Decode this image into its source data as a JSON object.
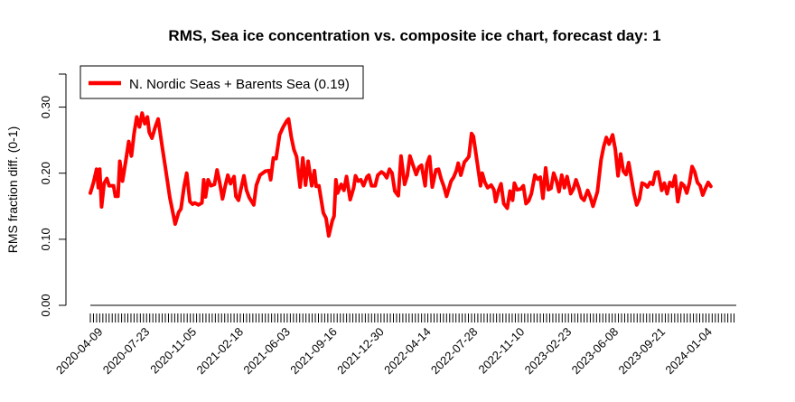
{
  "chart_data": {
    "type": "line",
    "title": "RMS, Sea ice concentration vs. composite ice chart, forecast day: 1",
    "ylabel": "RMS fraction diff. (0-1)",
    "xlabel": "",
    "ylim": [
      0,
      0.35
    ],
    "yticks": [
      "0.00",
      "0.10",
      "0.20",
      "0.30"
    ],
    "ytick_values": [
      0,
      0.1,
      0.2,
      0.3
    ],
    "xtick_labels": [
      "2020-04-09",
      "2020-07-23",
      "2020-11-05",
      "2021-02-18",
      "2021-06-03",
      "2021-09-16",
      "2021-12-30",
      "2022-04-14",
      "2022-07-28",
      "2022-11-10",
      "2023-02-23",
      "2023-06-08",
      "2023-09-21",
      "2024-01-04"
    ],
    "x_start": "2020-03-19",
    "x_end": "2024-03-05",
    "legend": {
      "position": "top-left",
      "entries": [
        "N. Nordic Seas + Barents Sea (0.19)"
      ]
    },
    "series_color": "#ff0000",
    "series": [
      {
        "name": "N. Nordic Seas + Barents Sea (0.19)",
        "points": [
          [
            "2020-03-19",
            0.17
          ],
          [
            "2020-03-26",
            0.186
          ],
          [
            "2020-04-02",
            0.206
          ],
          [
            "2020-04-06",
            0.178
          ],
          [
            "2020-04-09",
            0.206
          ],
          [
            "2020-04-13",
            0.149
          ],
          [
            "2020-04-19",
            0.185
          ],
          [
            "2020-04-25",
            0.192
          ],
          [
            "2020-04-30",
            0.181
          ],
          [
            "2020-05-10",
            0.181
          ],
          [
            "2020-05-14",
            0.165
          ],
          [
            "2020-05-20",
            0.165
          ],
          [
            "2020-05-24",
            0.218
          ],
          [
            "2020-05-30",
            0.188
          ],
          [
            "2020-06-07",
            0.221
          ],
          [
            "2020-06-13",
            0.248
          ],
          [
            "2020-06-19",
            0.226
          ],
          [
            "2020-06-25",
            0.26
          ],
          [
            "2020-07-01",
            0.285
          ],
          [
            "2020-07-07",
            0.27
          ],
          [
            "2020-07-13",
            0.291
          ],
          [
            "2020-07-19",
            0.275
          ],
          [
            "2020-07-25",
            0.285
          ],
          [
            "2020-07-29",
            0.262
          ],
          [
            "2020-08-04",
            0.253
          ],
          [
            "2020-08-12",
            0.271
          ],
          [
            "2020-08-18",
            0.282
          ],
          [
            "2020-08-26",
            0.244
          ],
          [
            "2020-09-03",
            0.209
          ],
          [
            "2020-09-13",
            0.163
          ],
          [
            "2020-09-25",
            0.123
          ],
          [
            "2020-10-03",
            0.141
          ],
          [
            "2020-10-08",
            0.146
          ],
          [
            "2020-10-15",
            0.18
          ],
          [
            "2020-10-21",
            0.2
          ],
          [
            "2020-10-28",
            0.157
          ],
          [
            "2020-11-03",
            0.153
          ],
          [
            "2020-11-08",
            0.155
          ],
          [
            "2020-11-16",
            0.152
          ],
          [
            "2020-11-24",
            0.155
          ],
          [
            "2020-11-28",
            0.19
          ],
          [
            "2020-12-02",
            0.164
          ],
          [
            "2020-12-08",
            0.19
          ],
          [
            "2020-12-14",
            0.181
          ],
          [
            "2020-12-22",
            0.183
          ],
          [
            "2020-12-28",
            0.205
          ],
          [
            "2021-01-03",
            0.185
          ],
          [
            "2021-01-09",
            0.161
          ],
          [
            "2021-01-15",
            0.18
          ],
          [
            "2021-01-21",
            0.197
          ],
          [
            "2021-01-27",
            0.184
          ],
          [
            "2021-02-04",
            0.195
          ],
          [
            "2021-02-08",
            0.165
          ],
          [
            "2021-02-14",
            0.159
          ],
          [
            "2021-02-20",
            0.178
          ],
          [
            "2021-02-26",
            0.196
          ],
          [
            "2021-03-04",
            0.174
          ],
          [
            "2021-03-10",
            0.163
          ],
          [
            "2021-03-20",
            0.152
          ],
          [
            "2021-03-26",
            0.182
          ],
          [
            "2021-04-03",
            0.197
          ],
          [
            "2021-04-15",
            0.203
          ],
          [
            "2021-04-23",
            0.204
          ],
          [
            "2021-04-27",
            0.19
          ],
          [
            "2021-05-03",
            0.223
          ],
          [
            "2021-05-09",
            0.222
          ],
          [
            "2021-05-17",
            0.258
          ],
          [
            "2021-05-25",
            0.27
          ],
          [
            "2021-06-02",
            0.279
          ],
          [
            "2021-06-06",
            0.282
          ],
          [
            "2021-06-12",
            0.255
          ],
          [
            "2021-06-18",
            0.236
          ],
          [
            "2021-06-24",
            0.225
          ],
          [
            "2021-07-02",
            0.179
          ],
          [
            "2021-07-08",
            0.223
          ],
          [
            "2021-07-14",
            0.182
          ],
          [
            "2021-07-20",
            0.218
          ],
          [
            "2021-07-28",
            0.181
          ],
          [
            "2021-08-03",
            0.204
          ],
          [
            "2021-08-07",
            0.18
          ],
          [
            "2021-08-13",
            0.181
          ],
          [
            "2021-08-23",
            0.14
          ],
          [
            "2021-08-29",
            0.132
          ],
          [
            "2021-09-04",
            0.105
          ],
          [
            "2021-09-12",
            0.128
          ],
          [
            "2021-09-16",
            0.135
          ],
          [
            "2021-09-20",
            0.19
          ],
          [
            "2021-09-24",
            0.17
          ],
          [
            "2021-10-02",
            0.183
          ],
          [
            "2021-10-08",
            0.174
          ],
          [
            "2021-10-14",
            0.195
          ],
          [
            "2021-10-22",
            0.16
          ],
          [
            "2021-10-30",
            0.178
          ],
          [
            "2021-11-03",
            0.196
          ],
          [
            "2021-11-09",
            0.188
          ],
          [
            "2021-11-15",
            0.19
          ],
          [
            "2021-11-21",
            0.181
          ],
          [
            "2021-11-29",
            0.195
          ],
          [
            "2021-12-03",
            0.197
          ],
          [
            "2021-12-09",
            0.181
          ],
          [
            "2021-12-17",
            0.181
          ],
          [
            "2021-12-23",
            0.197
          ],
          [
            "2021-12-31",
            0.202
          ],
          [
            "2022-01-06",
            0.199
          ],
          [
            "2022-01-12",
            0.193
          ],
          [
            "2022-01-18",
            0.206
          ],
          [
            "2022-01-24",
            0.2
          ],
          [
            "2022-01-30",
            0.173
          ],
          [
            "2022-02-07",
            0.166
          ],
          [
            "2022-02-13",
            0.226
          ],
          [
            "2022-02-21",
            0.183
          ],
          [
            "2022-02-27",
            0.196
          ],
          [
            "2022-03-05",
            0.226
          ],
          [
            "2022-03-13",
            0.21
          ],
          [
            "2022-03-19",
            0.198
          ],
          [
            "2022-03-25",
            0.209
          ],
          [
            "2022-03-31",
            0.212
          ],
          [
            "2022-04-08",
            0.181
          ],
          [
            "2022-04-12",
            0.214
          ],
          [
            "2022-04-18",
            0.225
          ],
          [
            "2022-04-24",
            0.179
          ],
          [
            "2022-05-02",
            0.205
          ],
          [
            "2022-05-08",
            0.206
          ],
          [
            "2022-05-14",
            0.191
          ],
          [
            "2022-05-20",
            0.18
          ],
          [
            "2022-05-26",
            0.165
          ],
          [
            "2022-06-05",
            0.188
          ],
          [
            "2022-06-11",
            0.194
          ],
          [
            "2022-06-17",
            0.204
          ],
          [
            "2022-06-21",
            0.215
          ],
          [
            "2022-06-27",
            0.197
          ],
          [
            "2022-07-05",
            0.217
          ],
          [
            "2022-07-09",
            0.22
          ],
          [
            "2022-07-15",
            0.225
          ],
          [
            "2022-07-21",
            0.26
          ],
          [
            "2022-07-25",
            0.256
          ],
          [
            "2022-08-04",
            0.21
          ],
          [
            "2022-08-10",
            0.181
          ],
          [
            "2022-08-14",
            0.2
          ],
          [
            "2022-08-20",
            0.186
          ],
          [
            "2022-08-26",
            0.178
          ],
          [
            "2022-09-03",
            0.182
          ],
          [
            "2022-09-09",
            0.175
          ],
          [
            "2022-09-13",
            0.157
          ],
          [
            "2022-09-19",
            0.173
          ],
          [
            "2022-09-25",
            0.184
          ],
          [
            "2022-10-01",
            0.154
          ],
          [
            "2022-10-09",
            0.147
          ],
          [
            "2022-10-15",
            0.173
          ],
          [
            "2022-10-21",
            0.159
          ],
          [
            "2022-10-25",
            0.185
          ],
          [
            "2022-10-31",
            0.175
          ],
          [
            "2022-11-08",
            0.176
          ],
          [
            "2022-11-14",
            0.181
          ],
          [
            "2022-11-20",
            0.154
          ],
          [
            "2022-11-26",
            0.158
          ],
          [
            "2022-12-02",
            0.169
          ],
          [
            "2022-12-10",
            0.197
          ],
          [
            "2022-12-16",
            0.191
          ],
          [
            "2022-12-22",
            0.194
          ],
          [
            "2022-12-28",
            0.162
          ],
          [
            "2023-01-03",
            0.208
          ],
          [
            "2023-01-09",
            0.175
          ],
          [
            "2023-01-15",
            0.177
          ],
          [
            "2023-01-21",
            0.2
          ],
          [
            "2023-01-27",
            0.189
          ],
          [
            "2023-02-02",
            0.172
          ],
          [
            "2023-02-08",
            0.197
          ],
          [
            "2023-02-14",
            0.178
          ],
          [
            "2023-02-20",
            0.195
          ],
          [
            "2023-02-28",
            0.169
          ],
          [
            "2023-03-06",
            0.176
          ],
          [
            "2023-03-12",
            0.19
          ],
          [
            "2023-03-18",
            0.178
          ],
          [
            "2023-03-24",
            0.163
          ],
          [
            "2023-03-30",
            0.159
          ],
          [
            "2023-04-07",
            0.174
          ],
          [
            "2023-04-13",
            0.164
          ],
          [
            "2023-04-19",
            0.15
          ],
          [
            "2023-04-29",
            0.172
          ],
          [
            "2023-05-07",
            0.22
          ],
          [
            "2023-05-13",
            0.24
          ],
          [
            "2023-05-19",
            0.254
          ],
          [
            "2023-05-25",
            0.244
          ],
          [
            "2023-06-02",
            0.258
          ],
          [
            "2023-06-08",
            0.236
          ],
          [
            "2023-06-14",
            0.196
          ],
          [
            "2023-06-20",
            0.229
          ],
          [
            "2023-06-26",
            0.203
          ],
          [
            "2023-07-02",
            0.198
          ],
          [
            "2023-07-08",
            0.216
          ],
          [
            "2023-07-12",
            0.2
          ],
          [
            "2023-07-20",
            0.169
          ],
          [
            "2023-07-26",
            0.152
          ],
          [
            "2023-08-01",
            0.161
          ],
          [
            "2023-08-07",
            0.185
          ],
          [
            "2023-08-13",
            0.183
          ],
          [
            "2023-08-19",
            0.179
          ],
          [
            "2023-08-25",
            0.186
          ],
          [
            "2023-08-31",
            0.183
          ],
          [
            "2023-09-06",
            0.201
          ],
          [
            "2023-09-12",
            0.202
          ],
          [
            "2023-09-20",
            0.174
          ],
          [
            "2023-09-26",
            0.185
          ],
          [
            "2023-10-02",
            0.169
          ],
          [
            "2023-10-08",
            0.186
          ],
          [
            "2023-10-14",
            0.18
          ],
          [
            "2023-10-20",
            0.196
          ],
          [
            "2023-10-26",
            0.157
          ],
          [
            "2023-11-03",
            0.185
          ],
          [
            "2023-11-09",
            0.181
          ],
          [
            "2023-11-15",
            0.17
          ],
          [
            "2023-11-21",
            0.185
          ],
          [
            "2023-11-27",
            0.21
          ],
          [
            "2023-12-03",
            0.202
          ],
          [
            "2023-12-09",
            0.186
          ],
          [
            "2023-12-15",
            0.181
          ],
          [
            "2023-12-21",
            0.167
          ],
          [
            "2023-12-27",
            0.177
          ],
          [
            "2024-01-02",
            0.186
          ],
          [
            "2024-01-08",
            0.18
          ]
        ]
      }
    ]
  }
}
